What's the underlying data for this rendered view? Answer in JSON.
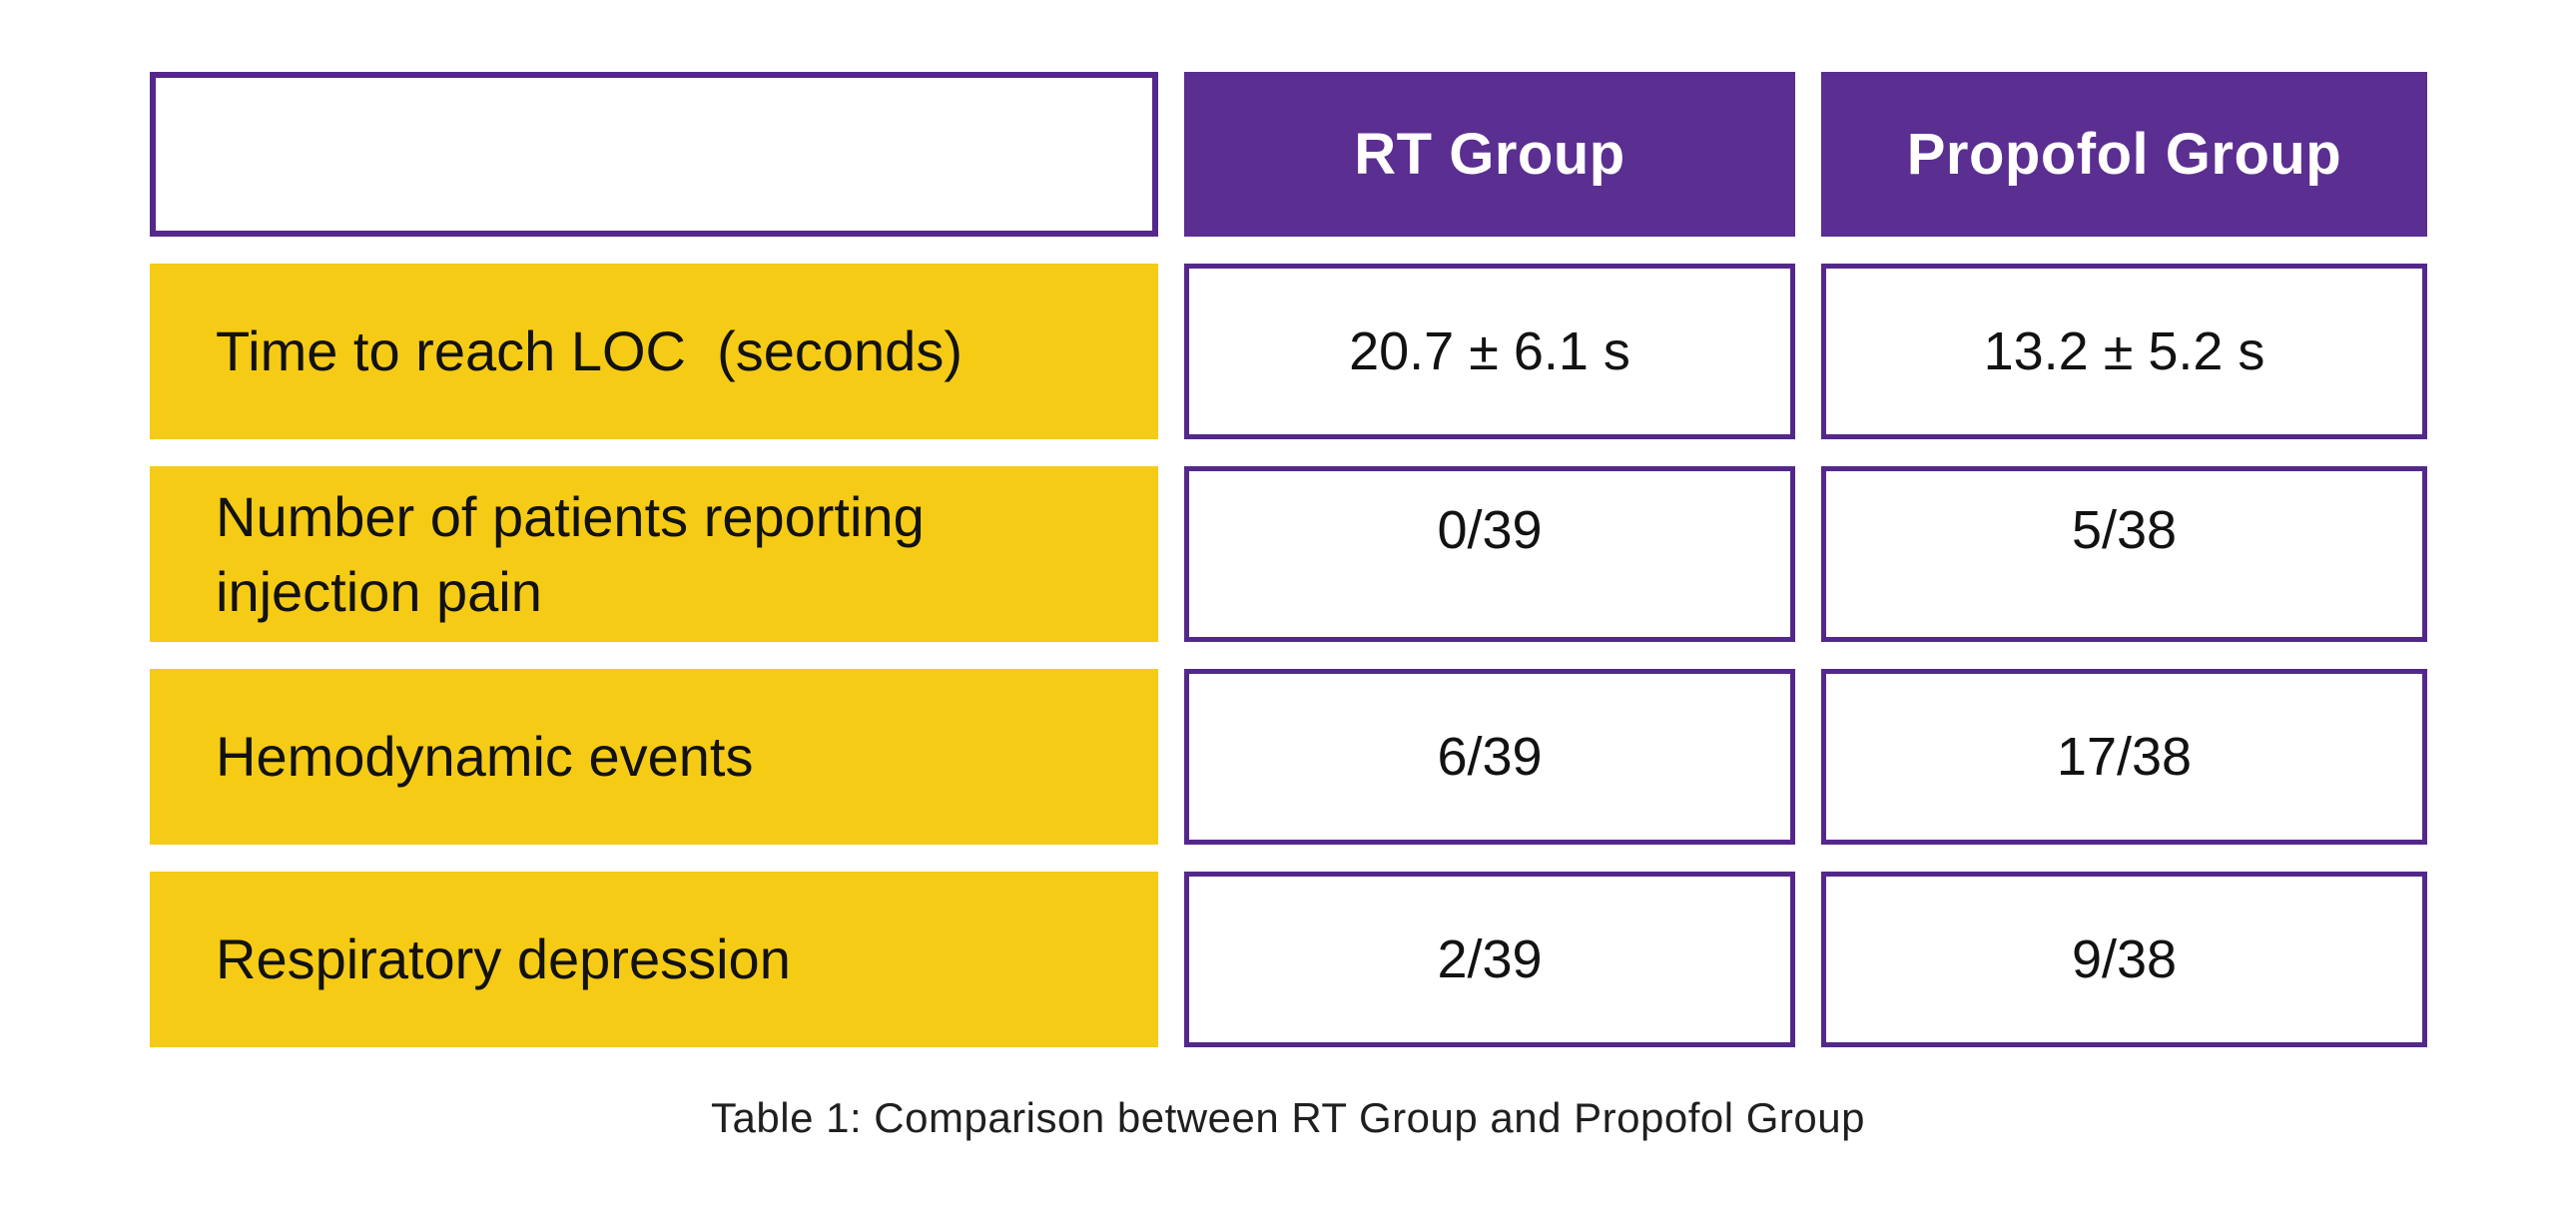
{
  "table": {
    "caption": "Table 1: Comparison between RT Group and Propofol Group",
    "columns": [
      "RT Group",
      "Propofol Group"
    ],
    "rows": [
      {
        "label": "Time to reach LOC  (seconds)",
        "rt": "20.7 ± 6.1 s",
        "propofol": "13.2 ± 5.2 s"
      },
      {
        "label": "Number of patients reporting injection pain",
        "rt": "0/39",
        "propofol": "5/38"
      },
      {
        "label": "Hemodynamic events",
        "rt": "6/39",
        "propofol": "17/38"
      },
      {
        "label": "Respiratory depression",
        "rt": "2/39",
        "propofol": "9/38"
      }
    ],
    "colors": {
      "header_fill_purple": "#5b2e91",
      "cell_border_purple": "#54288b",
      "row_label_yellow": "#f5cb16",
      "header_text": "#ffffff",
      "body_text": "#121212",
      "page_background": "#ffffff"
    }
  }
}
